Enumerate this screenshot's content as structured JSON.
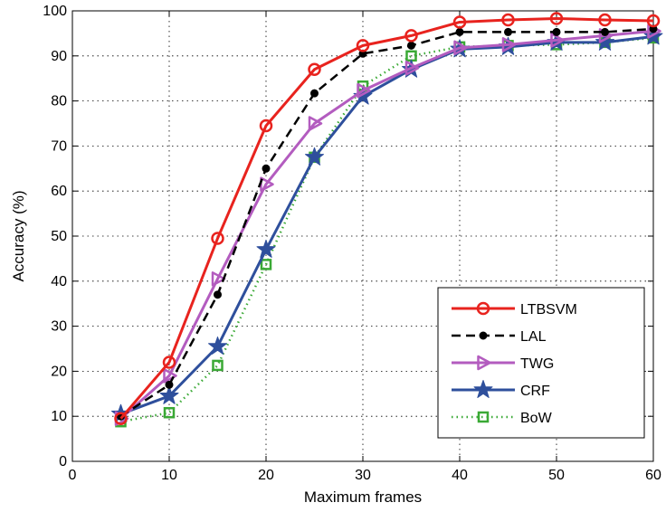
{
  "chart_data": {
    "type": "line",
    "title": "",
    "xlabel": "Maximum frames",
    "ylabel": "Accuracy (%)",
    "xlim": [
      0,
      60
    ],
    "ylim": [
      0,
      100
    ],
    "xticks": [
      0,
      10,
      20,
      30,
      40,
      50,
      60
    ],
    "yticks": [
      0,
      10,
      20,
      30,
      40,
      50,
      60,
      70,
      80,
      90,
      100
    ],
    "grid": true,
    "legend_position": "bottom-right",
    "x": [
      5,
      10,
      15,
      20,
      25,
      30,
      35,
      40,
      45,
      50,
      55,
      60
    ],
    "series": [
      {
        "name": "LTBSVM",
        "color": "#e8231e",
        "marker": "circle",
        "line": "solid",
        "values": [
          9.5,
          22,
          49.5,
          74.5,
          87,
          92.3,
          94.5,
          97.5,
          98,
          98.3,
          98,
          97.8
        ]
      },
      {
        "name": "LAL",
        "color": "#000000",
        "marker": "dot",
        "line": "dashed",
        "values": [
          10,
          17,
          37,
          65,
          81.7,
          90.5,
          92.3,
          95.3,
          95.3,
          95.3,
          95.3,
          96
        ]
      },
      {
        "name": "TWG",
        "color": "#b35cbf",
        "marker": "triangle-right",
        "line": "solid",
        "values": [
          9.5,
          19,
          40.5,
          61.5,
          75,
          82.3,
          87.3,
          91.8,
          92.5,
          93.5,
          94.5,
          95.5
        ]
      },
      {
        "name": "CRF",
        "color": "#2e4f9c",
        "marker": "star",
        "line": "solid",
        "values": [
          10.5,
          14.5,
          25.5,
          47,
          67.5,
          81,
          87,
          91.5,
          92,
          93,
          93,
          94.3
        ]
      },
      {
        "name": "BoW",
        "color": "#3aa935",
        "marker": "square",
        "line": "dotted",
        "values": [
          8.8,
          10.8,
          21.3,
          43.7,
          67.5,
          83.3,
          90,
          92,
          92.3,
          92.5,
          93,
          94
        ]
      }
    ]
  }
}
